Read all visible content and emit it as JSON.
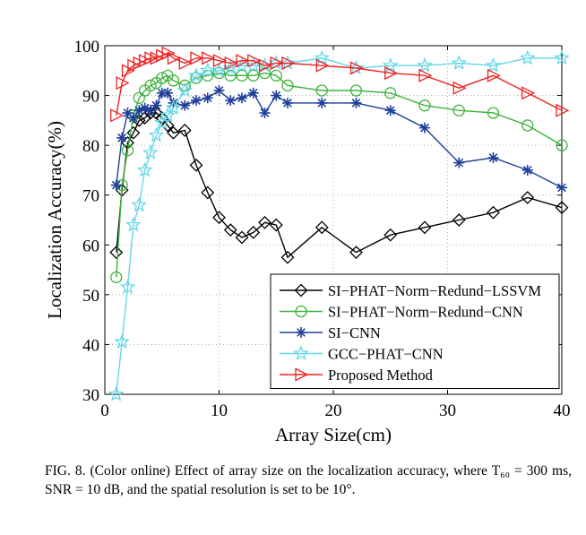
{
  "chart_data": {
    "type": "line",
    "xlabel": "Array Size(cm)",
    "ylabel": "Localization Accuracy(%)",
    "xlim": [
      0,
      40
    ],
    "ylim": [
      30,
      100
    ],
    "xticks": [
      0,
      10,
      20,
      30,
      40
    ],
    "yticks": [
      30,
      40,
      50,
      60,
      70,
      80,
      90,
      100
    ],
    "grid": true,
    "legend_position": "lower-right",
    "series": [
      {
        "name": "SI−PHAT−Norm−Redund−LSSVM",
        "color": "#000000",
        "marker": "diamond",
        "x": [
          1,
          1.5,
          2,
          2.5,
          3,
          3.5,
          4,
          4.5,
          5,
          5.5,
          6,
          7,
          8,
          9,
          10,
          11,
          12,
          13,
          14,
          15,
          16,
          19,
          22,
          25,
          28,
          31,
          34,
          37,
          40
        ],
        "y": [
          58.5,
          71,
          80.5,
          82.5,
          85,
          85.5,
          86.5,
          86.5,
          85.5,
          84,
          82.5,
          83,
          76,
          70.5,
          65.5,
          63,
          61.5,
          62.5,
          64.5,
          64,
          57.5,
          63.5,
          58.5,
          62,
          63.5,
          65,
          66.5,
          69.5,
          67.5
        ]
      },
      {
        "name": "SI−PHAT−Norm−Redund−CNN",
        "color": "#3cb33c",
        "marker": "circle",
        "x": [
          1,
          1.5,
          2,
          2.5,
          3,
          3.5,
          4,
          4.5,
          5,
          5.5,
          6,
          7,
          8,
          9,
          10,
          11,
          12,
          13,
          14,
          15,
          16,
          19,
          22,
          25,
          28,
          31,
          34,
          37,
          40
        ],
        "y": [
          53.5,
          72,
          79,
          86,
          89.5,
          91,
          92,
          92.5,
          93.5,
          94,
          93,
          92,
          93.5,
          94,
          94.5,
          94,
          94,
          94,
          94.5,
          94,
          92,
          91,
          91,
          90.5,
          88,
          87,
          86.5,
          84,
          80
        ]
      },
      {
        "name": "SI−CNN",
        "color": "#1f3f9a",
        "marker": "asterisk",
        "x": [
          1,
          1.5,
          2,
          2.5,
          3,
          3.5,
          4,
          4.5,
          5,
          5.5,
          6,
          7,
          8,
          9,
          10,
          11,
          12,
          13,
          14,
          15,
          16,
          19,
          22,
          25,
          28,
          31,
          34,
          37,
          40
        ],
        "y": [
          72,
          81.5,
          86.5,
          85.5,
          87,
          87.5,
          87,
          88,
          90.5,
          90.5,
          88.5,
          88,
          89,
          89.5,
          91,
          89,
          89.5,
          90.5,
          86.5,
          90,
          88.5,
          88.5,
          88.5,
          87,
          83.5,
          76.5,
          77.5,
          75,
          71.5
        ]
      },
      {
        "name": "GCC−PHAT−CNN",
        "color": "#66d6e8",
        "marker": "star",
        "x": [
          1,
          1.5,
          2,
          2.5,
          3,
          3.5,
          4,
          4.5,
          5,
          5.5,
          6,
          7,
          8,
          9,
          10,
          11,
          12,
          13,
          14,
          15,
          16,
          19,
          22,
          25,
          28,
          31,
          34,
          37,
          40
        ],
        "y": [
          30,
          40.5,
          51.5,
          64,
          68,
          75,
          78.5,
          82,
          84.5,
          86,
          87.5,
          91,
          94,
          95,
          95,
          95.5,
          96,
          96,
          96,
          96.5,
          96.5,
          97.5,
          95.5,
          96,
          96,
          96.5,
          96,
          97.5,
          97.5
        ]
      },
      {
        "name": "Proposed Method",
        "color": "#ee2222",
        "marker": "triangle-right",
        "x": [
          1,
          1.5,
          2,
          2.5,
          3,
          3.5,
          4,
          4.5,
          5,
          5.5,
          6,
          7,
          8,
          9,
          10,
          11,
          12,
          13,
          14,
          15,
          16,
          19,
          22,
          25,
          28,
          31,
          34,
          37,
          40
        ],
        "y": [
          86,
          92.5,
          95,
          96,
          96.5,
          97,
          97.5,
          97.5,
          98,
          98.5,
          97.5,
          96.5,
          97.5,
          97.5,
          97,
          96.5,
          97,
          97,
          96,
          96.5,
          96.5,
          96,
          95.5,
          94.5,
          94,
          91.5,
          94,
          90.5,
          87
        ]
      }
    ]
  },
  "caption": {
    "text": "FIG. 8. (Color online) Effect of array size on the localization accuracy, where T₆₀ = 300 ms, SNR = 10 dB, and the spatial resolution is set to be 10°."
  }
}
